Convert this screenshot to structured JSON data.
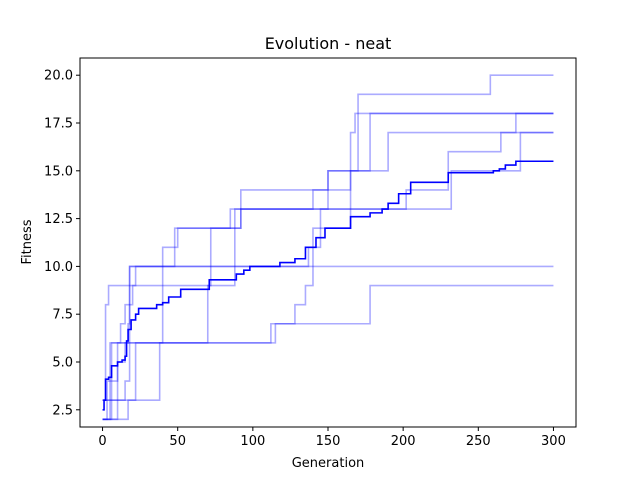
{
  "chart_data": {
    "type": "line",
    "title": "Evolution - neat",
    "xlabel": "Generation",
    "ylabel": "Fitness",
    "xlim": [
      -15,
      315
    ],
    "ylim": [
      1.6,
      20.9
    ],
    "x_ticks": [
      0,
      50,
      100,
      150,
      200,
      250,
      300
    ],
    "y_ticks": [
      2.5,
      5.0,
      7.5,
      10.0,
      12.5,
      15.0,
      17.5,
      20.0
    ],
    "x_tick_labels": [
      "0",
      "50",
      "100",
      "150",
      "200",
      "250",
      "300"
    ],
    "y_tick_labels": [
      "2.5",
      "5.0",
      "7.5",
      "10.0",
      "12.5",
      "15.0",
      "17.5",
      "20.0"
    ],
    "grid": false,
    "colors": {
      "runs": "#0000ff",
      "mean": "#0000ff",
      "runs_opacity": 0.33
    },
    "series": [
      {
        "role": "run",
        "steps": [
          [
            0,
            3
          ],
          [
            2,
            8
          ],
          [
            4,
            9
          ],
          [
            22,
            10
          ],
          [
            300,
            10
          ]
        ]
      },
      {
        "role": "run",
        "steps": [
          [
            0,
            2
          ],
          [
            5,
            6
          ],
          [
            20,
            6
          ],
          [
            40,
            11
          ],
          [
            50,
            12
          ],
          [
            85,
            13
          ],
          [
            120,
            13
          ],
          [
            140,
            14
          ],
          [
            165,
            17
          ],
          [
            168,
            18
          ],
          [
            190,
            18
          ],
          [
            205,
            18
          ],
          [
            300,
            18
          ]
        ]
      },
      {
        "role": "run",
        "steps": [
          [
            0,
            2
          ],
          [
            3,
            4
          ],
          [
            10,
            5
          ],
          [
            15,
            6
          ],
          [
            18,
            10
          ],
          [
            48,
            12
          ],
          [
            92,
            14
          ],
          [
            150,
            15
          ],
          [
            165,
            15
          ],
          [
            190,
            17
          ],
          [
            275,
            18
          ],
          [
            300,
            18
          ]
        ]
      },
      {
        "role": "run",
        "steps": [
          [
            0,
            2
          ],
          [
            6,
            6
          ],
          [
            17,
            7
          ],
          [
            18,
            10
          ],
          [
            70,
            10
          ],
          [
            72,
            12
          ],
          [
            88,
            12
          ],
          [
            92,
            13
          ],
          [
            148,
            13
          ],
          [
            150,
            15
          ],
          [
            170,
            19
          ],
          [
            258,
            20
          ],
          [
            300,
            20
          ]
        ]
      },
      {
        "role": "run",
        "steps": [
          [
            0,
            2
          ],
          [
            10,
            6
          ],
          [
            12,
            7
          ],
          [
            15,
            8
          ],
          [
            20,
            9
          ],
          [
            70,
            9
          ],
          [
            72,
            10
          ],
          [
            130,
            10
          ],
          [
            137,
            11
          ],
          [
            145,
            13
          ],
          [
            200,
            13
          ],
          [
            202,
            14
          ],
          [
            230,
            16
          ],
          [
            265,
            17
          ],
          [
            300,
            17
          ]
        ]
      },
      {
        "role": "run",
        "steps": [
          [
            0,
            3
          ],
          [
            20,
            3
          ],
          [
            22,
            6
          ],
          [
            68,
            6
          ],
          [
            70,
            9
          ],
          [
            85,
            9
          ],
          [
            88,
            13
          ],
          [
            150,
            13
          ],
          [
            230,
            13
          ],
          [
            232,
            15
          ],
          [
            275,
            15
          ],
          [
            278,
            17
          ],
          [
            300,
            17
          ]
        ]
      },
      {
        "role": "run",
        "steps": [
          [
            0,
            2
          ],
          [
            17,
            3
          ],
          [
            38,
            6
          ],
          [
            112,
            6
          ],
          [
            115,
            7
          ],
          [
            125,
            7
          ],
          [
            128,
            8
          ],
          [
            135,
            9
          ],
          [
            140,
            12
          ],
          [
            160,
            12
          ],
          [
            165,
            15
          ],
          [
            175,
            15
          ],
          [
            178,
            18
          ],
          [
            195,
            18
          ],
          [
            300,
            18
          ]
        ]
      },
      {
        "role": "run",
        "steps": [
          [
            0,
            3
          ],
          [
            5,
            3
          ],
          [
            8,
            3
          ],
          [
            15,
            4
          ],
          [
            18,
            6
          ],
          [
            110,
            6
          ],
          [
            112,
            7
          ],
          [
            118,
            7
          ],
          [
            160,
            7
          ],
          [
            165,
            7
          ],
          [
            175,
            7
          ],
          [
            178,
            9
          ],
          [
            300,
            9
          ]
        ]
      },
      {
        "role": "mean",
        "steps": [
          [
            0,
            2.5
          ],
          [
            1,
            3.0
          ],
          [
            2,
            4.1
          ],
          [
            4,
            4.2
          ],
          [
            6,
            4.8
          ],
          [
            10,
            5.0
          ],
          [
            13,
            5.1
          ],
          [
            15,
            5.3
          ],
          [
            16,
            6.1
          ],
          [
            17,
            6.7
          ],
          [
            19,
            7.2
          ],
          [
            22,
            7.5
          ],
          [
            24,
            7.8
          ],
          [
            36,
            8.0
          ],
          [
            40,
            8.1
          ],
          [
            44,
            8.4
          ],
          [
            50,
            8.4
          ],
          [
            52,
            8.8
          ],
          [
            70,
            8.8
          ],
          [
            71,
            9.3
          ],
          [
            88,
            9.3
          ],
          [
            89,
            9.6
          ],
          [
            94,
            9.8
          ],
          [
            98,
            10.0
          ],
          [
            118,
            10.2
          ],
          [
            128,
            10.4
          ],
          [
            135,
            11.0
          ],
          [
            142,
            11.5
          ],
          [
            148,
            12.0
          ],
          [
            160,
            12.0
          ],
          [
            165,
            12.6
          ],
          [
            178,
            12.8
          ],
          [
            186,
            13.0
          ],
          [
            190,
            13.3
          ],
          [
            197,
            13.8
          ],
          [
            205,
            14.4
          ],
          [
            230,
            14.9
          ],
          [
            260,
            15.0
          ],
          [
            264,
            15.1
          ],
          [
            268,
            15.3
          ],
          [
            275,
            15.5
          ],
          [
            300,
            15.5
          ]
        ]
      }
    ]
  }
}
